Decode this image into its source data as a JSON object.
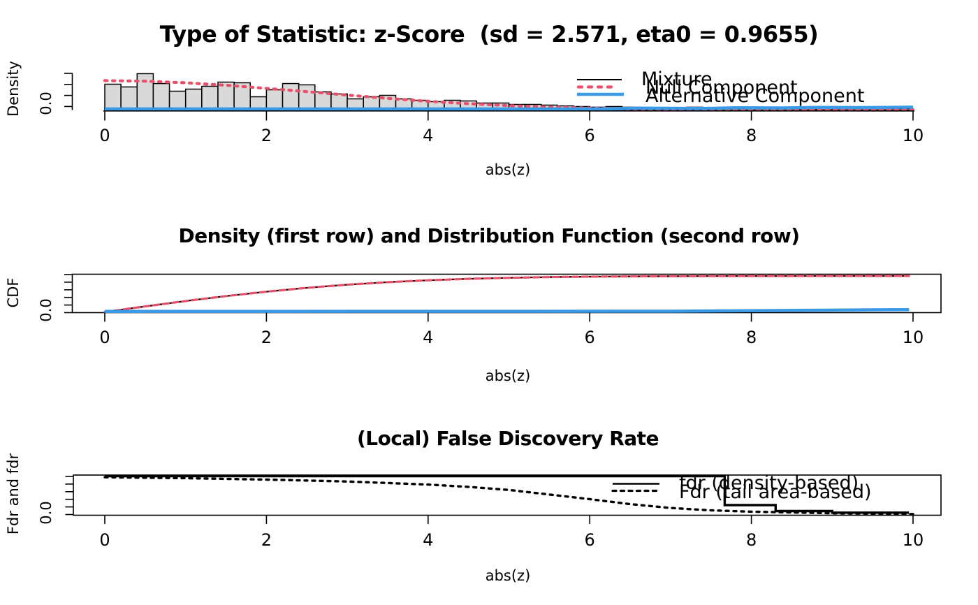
{
  "colors": {
    "curve_red": "#E8506A",
    "curve_blue": "#3B9AE8",
    "line_black": "#000000",
    "bar_fill": "#D9D9D9",
    "bar_stroke": "#000000",
    "background": "#FFFFFF"
  },
  "panel1": {
    "title": "Type of Statistic: z-Score  (sd = 2.571, eta0 = 0.9655)",
    "ylabel": "Density",
    "ytick_label": "0.0",
    "xlabel": "abs(z)",
    "xticks": [
      "0",
      "2",
      "4",
      "6",
      "8",
      "10"
    ],
    "legend": [
      {
        "label": "Mixture",
        "style": "solid-black"
      },
      {
        "label": "Null Component",
        "style": "dotted-red"
      },
      {
        "label": "Alternative Component",
        "style": "solid-blue"
      }
    ]
  },
  "panel2": {
    "title": "Density (first row) and Distribution Function (second row)",
    "ylabel": "CDF",
    "ytick_label": "0.0",
    "xlabel": "abs(z)",
    "xticks": [
      "0",
      "2",
      "4",
      "6",
      "8",
      "10"
    ]
  },
  "panel3": {
    "title": "(Local) False Discovery Rate",
    "ylabel": "Fdr and fdr",
    "ytick_label": "0.0",
    "xlabel": "abs(z)",
    "xticks": [
      "0",
      "2",
      "4",
      "6",
      "8",
      "10"
    ],
    "legend": [
      {
        "label": "fdr (density-based)",
        "style": "solid-black"
      },
      {
        "label": "Fdr (tail area-based)",
        "style": "dotted-black"
      }
    ]
  },
  "chart_data": [
    {
      "type": "bar",
      "subtype": "histogram-with-density-lines",
      "title": "Type of Statistic: z-Score  (sd = 2.571, eta0 = 0.9655)",
      "xlabel": "abs(z)",
      "ylabel": "Density",
      "xlim": [
        0,
        10.35
      ],
      "xticks": [
        0,
        2,
        4,
        6,
        8,
        10
      ],
      "grid": false,
      "legend_position": "top-right",
      "bins": {
        "start": 0,
        "width": 0.2,
        "densities": [
          0.273,
          0.244,
          0.384,
          0.28,
          0.199,
          0.221,
          0.251,
          0.295,
          0.288,
          0.14,
          0.214,
          0.28,
          0.266,
          0.192,
          0.17,
          0.118,
          0.14,
          0.155,
          0.118,
          0.103,
          0.089,
          0.103,
          0.096,
          0.074,
          0.074,
          0.059,
          0.059,
          0.052,
          0.044,
          0.037,
          0.03,
          0.037,
          0.03,
          0.022,
          0.022,
          0.022,
          0.03,
          0.022,
          0.015,
          0.015,
          0.022,
          0.022,
          0.015,
          0.015,
          0.015,
          0.015,
          0.015,
          0.015,
          0.015,
          0.015
        ]
      },
      "series": [
        {
          "name": "Null Component",
          "style": "dotted",
          "color": "#E8506A",
          "points": [
            [
              0,
              0.311
            ],
            [
              0.5,
              0.305
            ],
            [
              1,
              0.288
            ],
            [
              1.5,
              0.262
            ],
            [
              2,
              0.229
            ],
            [
              2.5,
              0.194
            ],
            [
              3,
              0.158
            ],
            [
              3.5,
              0.123
            ],
            [
              4,
              0.0925
            ],
            [
              4.5,
              0.0672
            ],
            [
              5,
              0.0468
            ],
            [
              5.5,
              0.0318
            ],
            [
              6,
              0.0204
            ],
            [
              6.5,
              0.0126
            ],
            [
              7,
              0.0076
            ],
            [
              7.5,
              0.0044
            ],
            [
              8,
              0.0025
            ],
            [
              8.5,
              0.0013
            ],
            [
              9,
              0.0007
            ],
            [
              9.5,
              0.0003
            ],
            [
              10,
              0.0002
            ]
          ]
        },
        {
          "name": "Alternative Component",
          "style": "solid",
          "color": "#3B9AE8",
          "points": [
            [
              0,
              0.012
            ],
            [
              6.2,
              0.012
            ],
            [
              6.6,
              0.02
            ],
            [
              7.4,
              0.016
            ],
            [
              7.8,
              0.024
            ],
            [
              8.4,
              0.022
            ],
            [
              8.8,
              0.028
            ],
            [
              9.4,
              0.026
            ],
            [
              10,
              0.03
            ]
          ]
        }
      ]
    },
    {
      "type": "line",
      "title": "Density (first row) and Distribution Function (second row)",
      "xlabel": "abs(z)",
      "ylabel": "CDF",
      "xlim": [
        0,
        10.35
      ],
      "ylim": [
        0,
        1.05
      ],
      "xticks": [
        0,
        2,
        4,
        6,
        8,
        10
      ],
      "grid": false,
      "box": true,
      "series": [
        {
          "name": "Mixture",
          "style": "solid",
          "color": "#000000",
          "points": [
            [
              0,
              0
            ],
            [
              0.5,
              0.154
            ],
            [
              1,
              0.303
            ],
            [
              1.5,
              0.44
            ],
            [
              2,
              0.563
            ],
            [
              2.5,
              0.669
            ],
            [
              3,
              0.757
            ],
            [
              3.5,
              0.827
            ],
            [
              4,
              0.88
            ],
            [
              4.5,
              0.92
            ],
            [
              5,
              0.948
            ],
            [
              5.5,
              0.968
            ],
            [
              6,
              0.98
            ],
            [
              6.5,
              0.988
            ],
            [
              7,
              0.993
            ],
            [
              7.5,
              0.996
            ],
            [
              8,
              0.998
            ],
            [
              8.5,
              0.999
            ],
            [
              9,
              0.9995
            ],
            [
              9.5,
              0.9998
            ],
            [
              9.95,
              0.9999
            ]
          ]
        },
        {
          "name": "Null Component",
          "style": "dashed",
          "color": "#E8506A",
          "same_points_as": "Mixture"
        },
        {
          "name": "Alternative Component",
          "style": "solid",
          "color": "#3B9AE8",
          "points": [
            [
              0,
              0.013
            ],
            [
              7,
              0.02
            ],
            [
              9.95,
              0.064
            ]
          ]
        }
      ]
    },
    {
      "type": "line",
      "title": "(Local) False Discovery Rate",
      "xlabel": "abs(z)",
      "ylabel": "Fdr and fdr",
      "xlim": [
        0,
        10.35
      ],
      "ylim": [
        0,
        1.05
      ],
      "xticks": [
        0,
        2,
        4,
        6,
        8,
        10
      ],
      "grid": false,
      "box": true,
      "legend_position": "right",
      "series": [
        {
          "name": "fdr (density-based)",
          "style": "solid-step",
          "color": "#000000",
          "points": [
            [
              0,
              1.0
            ],
            [
              7.67,
              1.0
            ],
            [
              7.67,
              0.245
            ],
            [
              8.3,
              0.245
            ],
            [
              8.3,
              0.09
            ],
            [
              9.0,
              0.09
            ],
            [
              9.0,
              0.05
            ],
            [
              9.95,
              0.05
            ]
          ]
        },
        {
          "name": "Fdr (tail area-based)",
          "style": "dotted",
          "color": "#000000",
          "points": [
            [
              0,
              0.97
            ],
            [
              1,
              0.945
            ],
            [
              2,
              0.91
            ],
            [
              3,
              0.86
            ],
            [
              4,
              0.78
            ],
            [
              4.5,
              0.72
            ],
            [
              5,
              0.64
            ],
            [
              5.5,
              0.52
            ],
            [
              6,
              0.4
            ],
            [
              6.5,
              0.27
            ],
            [
              7,
              0.17
            ],
            [
              7.5,
              0.11
            ],
            [
              8,
              0.075
            ],
            [
              8.5,
              0.055
            ],
            [
              9,
              0.035
            ],
            [
              9.5,
              0.022
            ],
            [
              10,
              0.012
            ]
          ]
        }
      ]
    }
  ]
}
